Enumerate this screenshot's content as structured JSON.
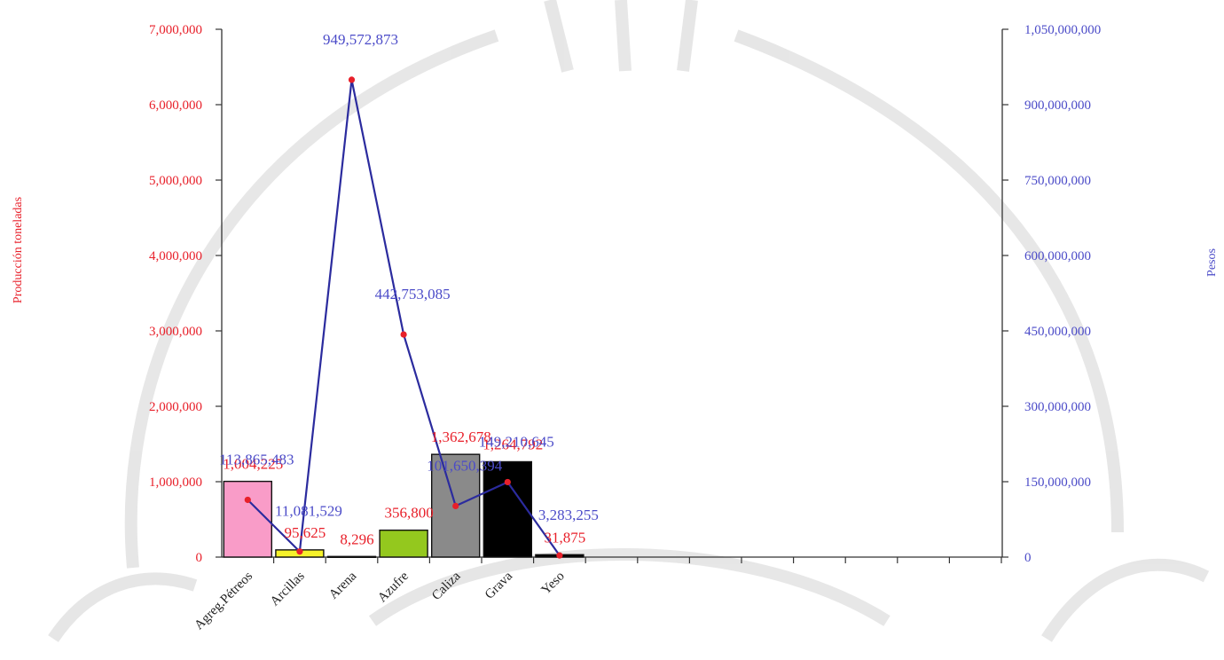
{
  "chart_data": {
    "type": "bar",
    "categories": [
      "Agreg.Pétreos",
      "Arcillas",
      "Arena",
      "Azufre",
      "Caliza",
      "Grava",
      "Yeso"
    ],
    "series": [
      {
        "name": "",
        "axis": "left",
        "kind": "bar",
        "values": [
          1004225,
          95625,
          8296,
          356800,
          1362678,
          1264792,
          31875
        ],
        "labels": [
          "1,004,225",
          "95,625",
          "8,296",
          "356,800",
          "1,362,678",
          "1,264,792",
          "31,875"
        ],
        "colors": [
          "#f99cc8",
          "#f6f22a",
          "#e9e9e9",
          "#94c81e",
          "#8a8a8a",
          "#000000",
          "#000000"
        ]
      },
      {
        "name": "",
        "axis": "right",
        "kind": "line",
        "values": [
          113865483,
          11081529,
          949572873,
          442753085,
          101650394,
          149210645,
          3283255
        ],
        "labels": [
          "113,865,483",
          "11,081,529",
          "949,572,873",
          "442,753,085",
          "101,650,394",
          "149,210,645",
          "3,283,255"
        ],
        "line_color": "#2b2b9e",
        "marker_color": "#e8202a"
      }
    ],
    "ylabel": "Producción toneladas",
    "y2label": "Pesos",
    "ylim": [
      0,
      7000000
    ],
    "y2lim": [
      0,
      1050000000
    ],
    "yticks": [
      "0",
      "1,000,000",
      "2,000,000",
      "3,000,000",
      "4,000,000",
      "5,000,000",
      "6,000,000",
      "7,000,000"
    ],
    "y2ticks": [
      "0",
      "150,000,000",
      "300,000,000",
      "450,000,000",
      "600,000,000",
      "750,000,000",
      "900,000,000",
      "1,050,000,000"
    ],
    "grid": false,
    "legend": "none",
    "colors": {
      "left_axis_text": "#e8202a",
      "right_axis_text": "#4b4bc8"
    }
  }
}
